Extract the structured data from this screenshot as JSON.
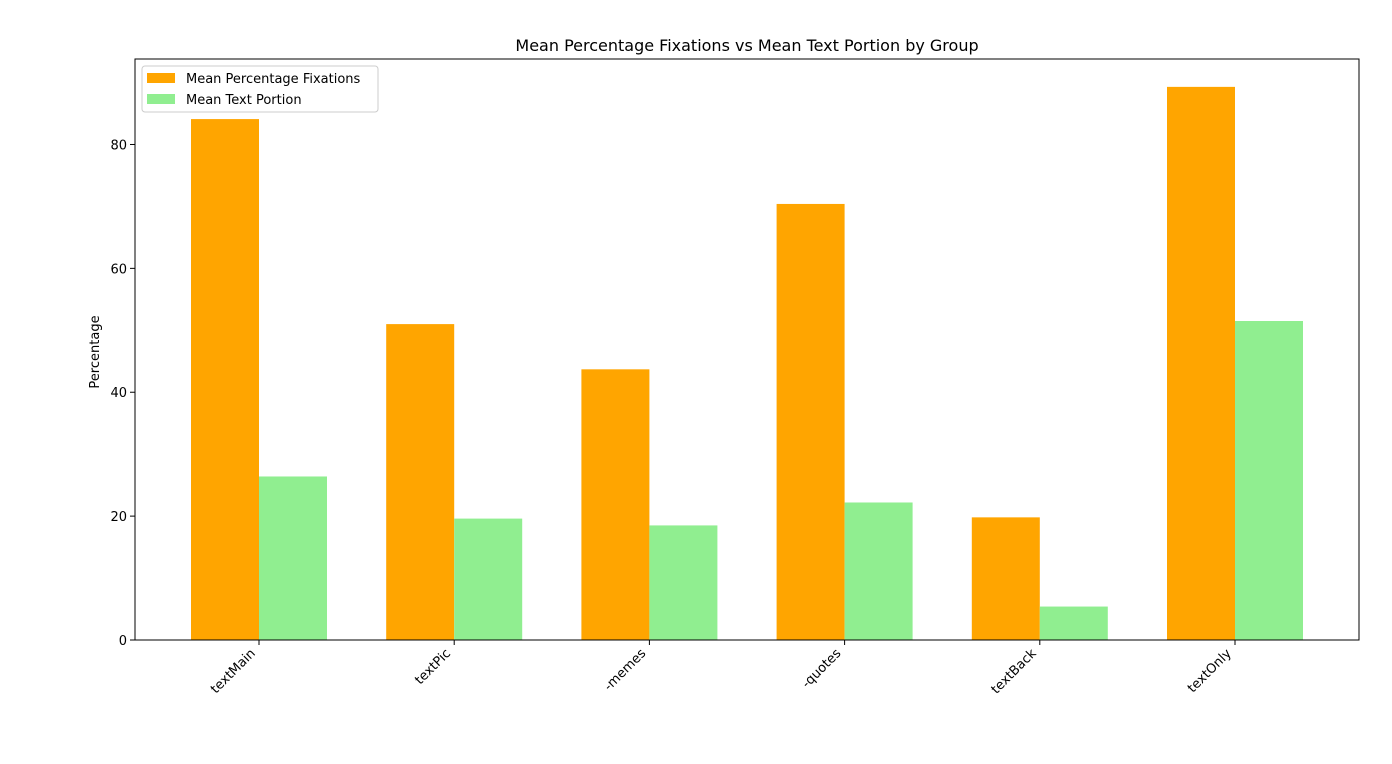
{
  "chart_data": {
    "type": "bar",
    "title": "Mean Percentage Fixations vs Mean Text Portion by Group",
    "xlabel": "",
    "ylabel": "Percentage",
    "categories": [
      "textMain",
      "textPic",
      "-memes",
      "-quotes",
      "textBack",
      "textOnly"
    ],
    "series": [
      {
        "name": "Mean Percentage Fixations",
        "color": "#ffa500",
        "values": [
          84.1,
          51.0,
          43.7,
          70.4,
          19.8,
          89.3
        ]
      },
      {
        "name": "Mean Text Portion",
        "color": "#90ee90",
        "values": [
          26.4,
          19.6,
          18.5,
          22.2,
          5.4,
          51.5
        ]
      }
    ],
    "yticks": [
      0,
      20,
      40,
      60,
      80
    ],
    "ylim": [
      0,
      93.8
    ],
    "grid": false,
    "legend_position": "upper-left"
  }
}
